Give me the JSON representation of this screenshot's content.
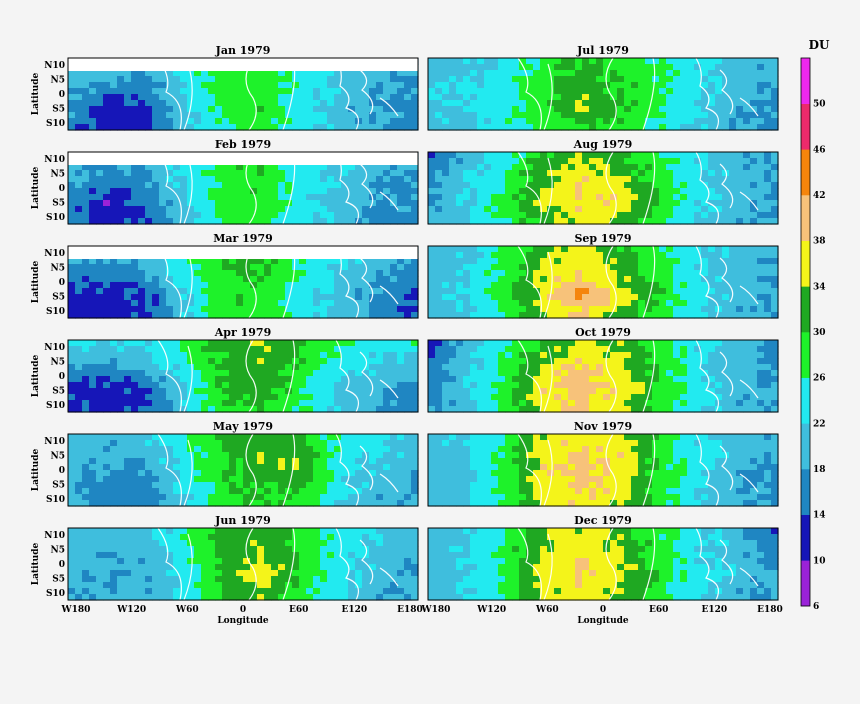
{
  "chart_data": {
    "type": "heatmap",
    "colorbar": {
      "title": "DU",
      "ticks": [
        "6",
        "10",
        "14",
        "18",
        "22",
        "26",
        "30",
        "34",
        "38",
        "42",
        "46",
        "50"
      ],
      "bins": [
        {
          "from": 6,
          "to": 10,
          "color": "#9a22d8"
        },
        {
          "from": 10,
          "to": 14,
          "color": "#1616b8"
        },
        {
          "from": 14,
          "to": 18,
          "color": "#1f86c2"
        },
        {
          "from": 18,
          "to": 22,
          "color": "#3fbedd"
        },
        {
          "from": 22,
          "to": 26,
          "color": "#22eaf0"
        },
        {
          "from": 26,
          "to": 30,
          "color": "#1ef22a"
        },
        {
          "from": 30,
          "to": 34,
          "color": "#1fa822"
        },
        {
          "from": 34,
          "to": 38,
          "color": "#f4f41a"
        },
        {
          "from": 38,
          "to": 42,
          "color": "#f7c27a"
        },
        {
          "from": 42,
          "to": 46,
          "color": "#f5850c"
        },
        {
          "from": 46,
          "to": 50,
          "color": "#ec2a6b"
        },
        {
          "from": 50,
          "to": 54,
          "color": "#ee28ee"
        }
      ]
    },
    "y_axis": {
      "label": "Latitude",
      "ticks": [
        "N10",
        "N5",
        "0",
        "S5",
        "S10"
      ]
    },
    "x_axis": {
      "label": "Longitude",
      "ticks": [
        "W180",
        "W120",
        "W60",
        "0",
        "E60",
        "E120",
        "E180"
      ]
    },
    "panels": [
      {
        "title": "Jan 1979",
        "column": "left",
        "row": 0,
        "pattern": [
          [
            20,
            19,
            20,
            24,
            28,
            29,
            25,
            22,
            20,
            18
          ],
          [
            20,
            18,
            16,
            23,
            27,
            28,
            24,
            21,
            19,
            17
          ],
          [
            18,
            12,
            13,
            21,
            27,
            29,
            24,
            20,
            18,
            17
          ],
          [
            16,
            12,
            11,
            20,
            26,
            28,
            23,
            20,
            17,
            15
          ]
        ]
      },
      {
        "title": "Feb 1979",
        "column": "left",
        "row": 1,
        "pattern": [
          [
            20,
            20,
            21,
            24,
            29,
            30,
            26,
            22,
            20,
            19
          ],
          [
            19,
            16,
            18,
            23,
            28,
            29,
            24,
            21,
            19,
            17
          ],
          [
            17,
            11,
            15,
            21,
            28,
            29,
            24,
            20,
            18,
            17
          ],
          [
            16,
            12,
            13,
            20,
            26,
            28,
            23,
            20,
            17,
            15
          ]
        ]
      },
      {
        "title": "Mar 1979",
        "column": "left",
        "row": 2,
        "pattern": [
          [
            22,
            21,
            22,
            26,
            31,
            33,
            28,
            23,
            21,
            19
          ],
          [
            17,
            16,
            18,
            24,
            30,
            30,
            26,
            21,
            19,
            17
          ],
          [
            12,
            13,
            13,
            22,
            29,
            29,
            24,
            20,
            17,
            13
          ],
          [
            12,
            12,
            14,
            21,
            28,
            28,
            23,
            20,
            17,
            13
          ]
        ]
      },
      {
        "title": "Apr 1979",
        "column": "left",
        "row": 3,
        "pattern": [
          [
            24,
            23,
            23,
            27,
            32,
            34,
            30,
            26,
            24,
            27
          ],
          [
            19,
            18,
            19,
            25,
            31,
            34,
            29,
            24,
            22,
            20
          ],
          [
            13,
            12,
            14,
            22,
            31,
            32,
            27,
            21,
            19,
            17
          ],
          [
            14,
            13,
            14,
            21,
            29,
            30,
            26,
            21,
            18,
            15
          ]
        ]
      },
      {
        "title": "May 1979",
        "column": "left",
        "row": 4,
        "pattern": [
          [
            22,
            20,
            21,
            26,
            31,
            32,
            30,
            25,
            23,
            20
          ],
          [
            20,
            18,
            19,
            24,
            30,
            33,
            33,
            24,
            22,
            20
          ],
          [
            19,
            16,
            16,
            23,
            29,
            31,
            33,
            23,
            20,
            18
          ],
          [
            18,
            16,
            15,
            21,
            28,
            29,
            27,
            22,
            19,
            17
          ]
        ]
      },
      {
        "title": "Jun 1979",
        "column": "left",
        "row": 5,
        "pattern": [
          [
            21,
            20,
            21,
            25,
            31,
            32,
            29,
            25,
            22,
            19
          ],
          [
            20,
            19,
            19,
            25,
            32,
            34,
            29,
            24,
            21,
            19
          ],
          [
            20,
            18,
            19,
            24,
            31,
            37,
            29,
            23,
            20,
            18
          ],
          [
            19,
            18,
            18,
            23,
            30,
            33,
            27,
            22,
            19,
            17
          ]
        ]
      },
      {
        "title": "Jul 1979",
        "column": "right",
        "row": 0,
        "pattern": [
          [
            20,
            21,
            23,
            27,
            31,
            28,
            26,
            22,
            20,
            19
          ],
          [
            21,
            22,
            24,
            28,
            32,
            29,
            27,
            23,
            20,
            18
          ],
          [
            21,
            22,
            25,
            29,
            35,
            30,
            27,
            22,
            19,
            17
          ],
          [
            20,
            21,
            24,
            27,
            30,
            28,
            25,
            21,
            18,
            16
          ]
        ]
      },
      {
        "title": "Aug 1979",
        "column": "right",
        "row": 1,
        "pattern": [
          [
            12,
            20,
            24,
            30,
            33,
            30,
            27,
            22,
            19,
            18
          ],
          [
            17,
            21,
            26,
            33,
            37,
            33,
            28,
            23,
            20,
            18
          ],
          [
            18,
            22,
            28,
            35,
            39,
            38,
            29,
            23,
            19,
            17
          ],
          [
            19,
            21,
            26,
            32,
            35,
            32,
            27,
            22,
            19,
            17
          ]
        ]
      },
      {
        "title": "Sep 1979",
        "column": "right",
        "row": 2,
        "pattern": [
          [
            19,
            21,
            25,
            33,
            35,
            31,
            27,
            22,
            20,
            19
          ],
          [
            20,
            22,
            27,
            35,
            37,
            33,
            28,
            23,
            20,
            19
          ],
          [
            20,
            22,
            28,
            37,
            43,
            35,
            29,
            23,
            20,
            18
          ],
          [
            20,
            21,
            26,
            34,
            38,
            32,
            27,
            22,
            19,
            18
          ]
        ]
      },
      {
        "title": "Oct 1979",
        "column": "right",
        "row": 3,
        "pattern": [
          [
            12,
            20,
            25,
            31,
            35,
            33,
            27,
            23,
            20,
            14
          ],
          [
            14,
            21,
            27,
            35,
            38,
            35,
            28,
            23,
            20,
            17
          ],
          [
            15,
            22,
            28,
            38,
            41,
            37,
            29,
            23,
            20,
            18
          ],
          [
            17,
            21,
            27,
            35,
            39,
            34,
            27,
            22,
            19,
            18
          ]
        ]
      },
      {
        "title": "Nov 1979",
        "column": "right",
        "row": 4,
        "pattern": [
          [
            20,
            22,
            27,
            35,
            37,
            35,
            28,
            23,
            21,
            19
          ],
          [
            20,
            22,
            28,
            37,
            39,
            37,
            28,
            23,
            20,
            19
          ],
          [
            19,
            21,
            28,
            37,
            39,
            36,
            28,
            22,
            18,
            16
          ],
          [
            19,
            21,
            27,
            35,
            37,
            34,
            27,
            22,
            18,
            17
          ]
        ]
      },
      {
        "title": "Dec 1979",
        "column": "right",
        "row": 5,
        "pattern": [
          [
            20,
            21,
            26,
            33,
            35,
            32,
            27,
            23,
            20,
            12
          ],
          [
            20,
            22,
            27,
            35,
            37,
            34,
            28,
            23,
            20,
            16
          ],
          [
            19,
            22,
            27,
            36,
            38,
            35,
            28,
            23,
            20,
            18
          ],
          [
            19,
            21,
            26,
            34,
            36,
            33,
            27,
            22,
            19,
            18
          ]
        ]
      }
    ]
  }
}
